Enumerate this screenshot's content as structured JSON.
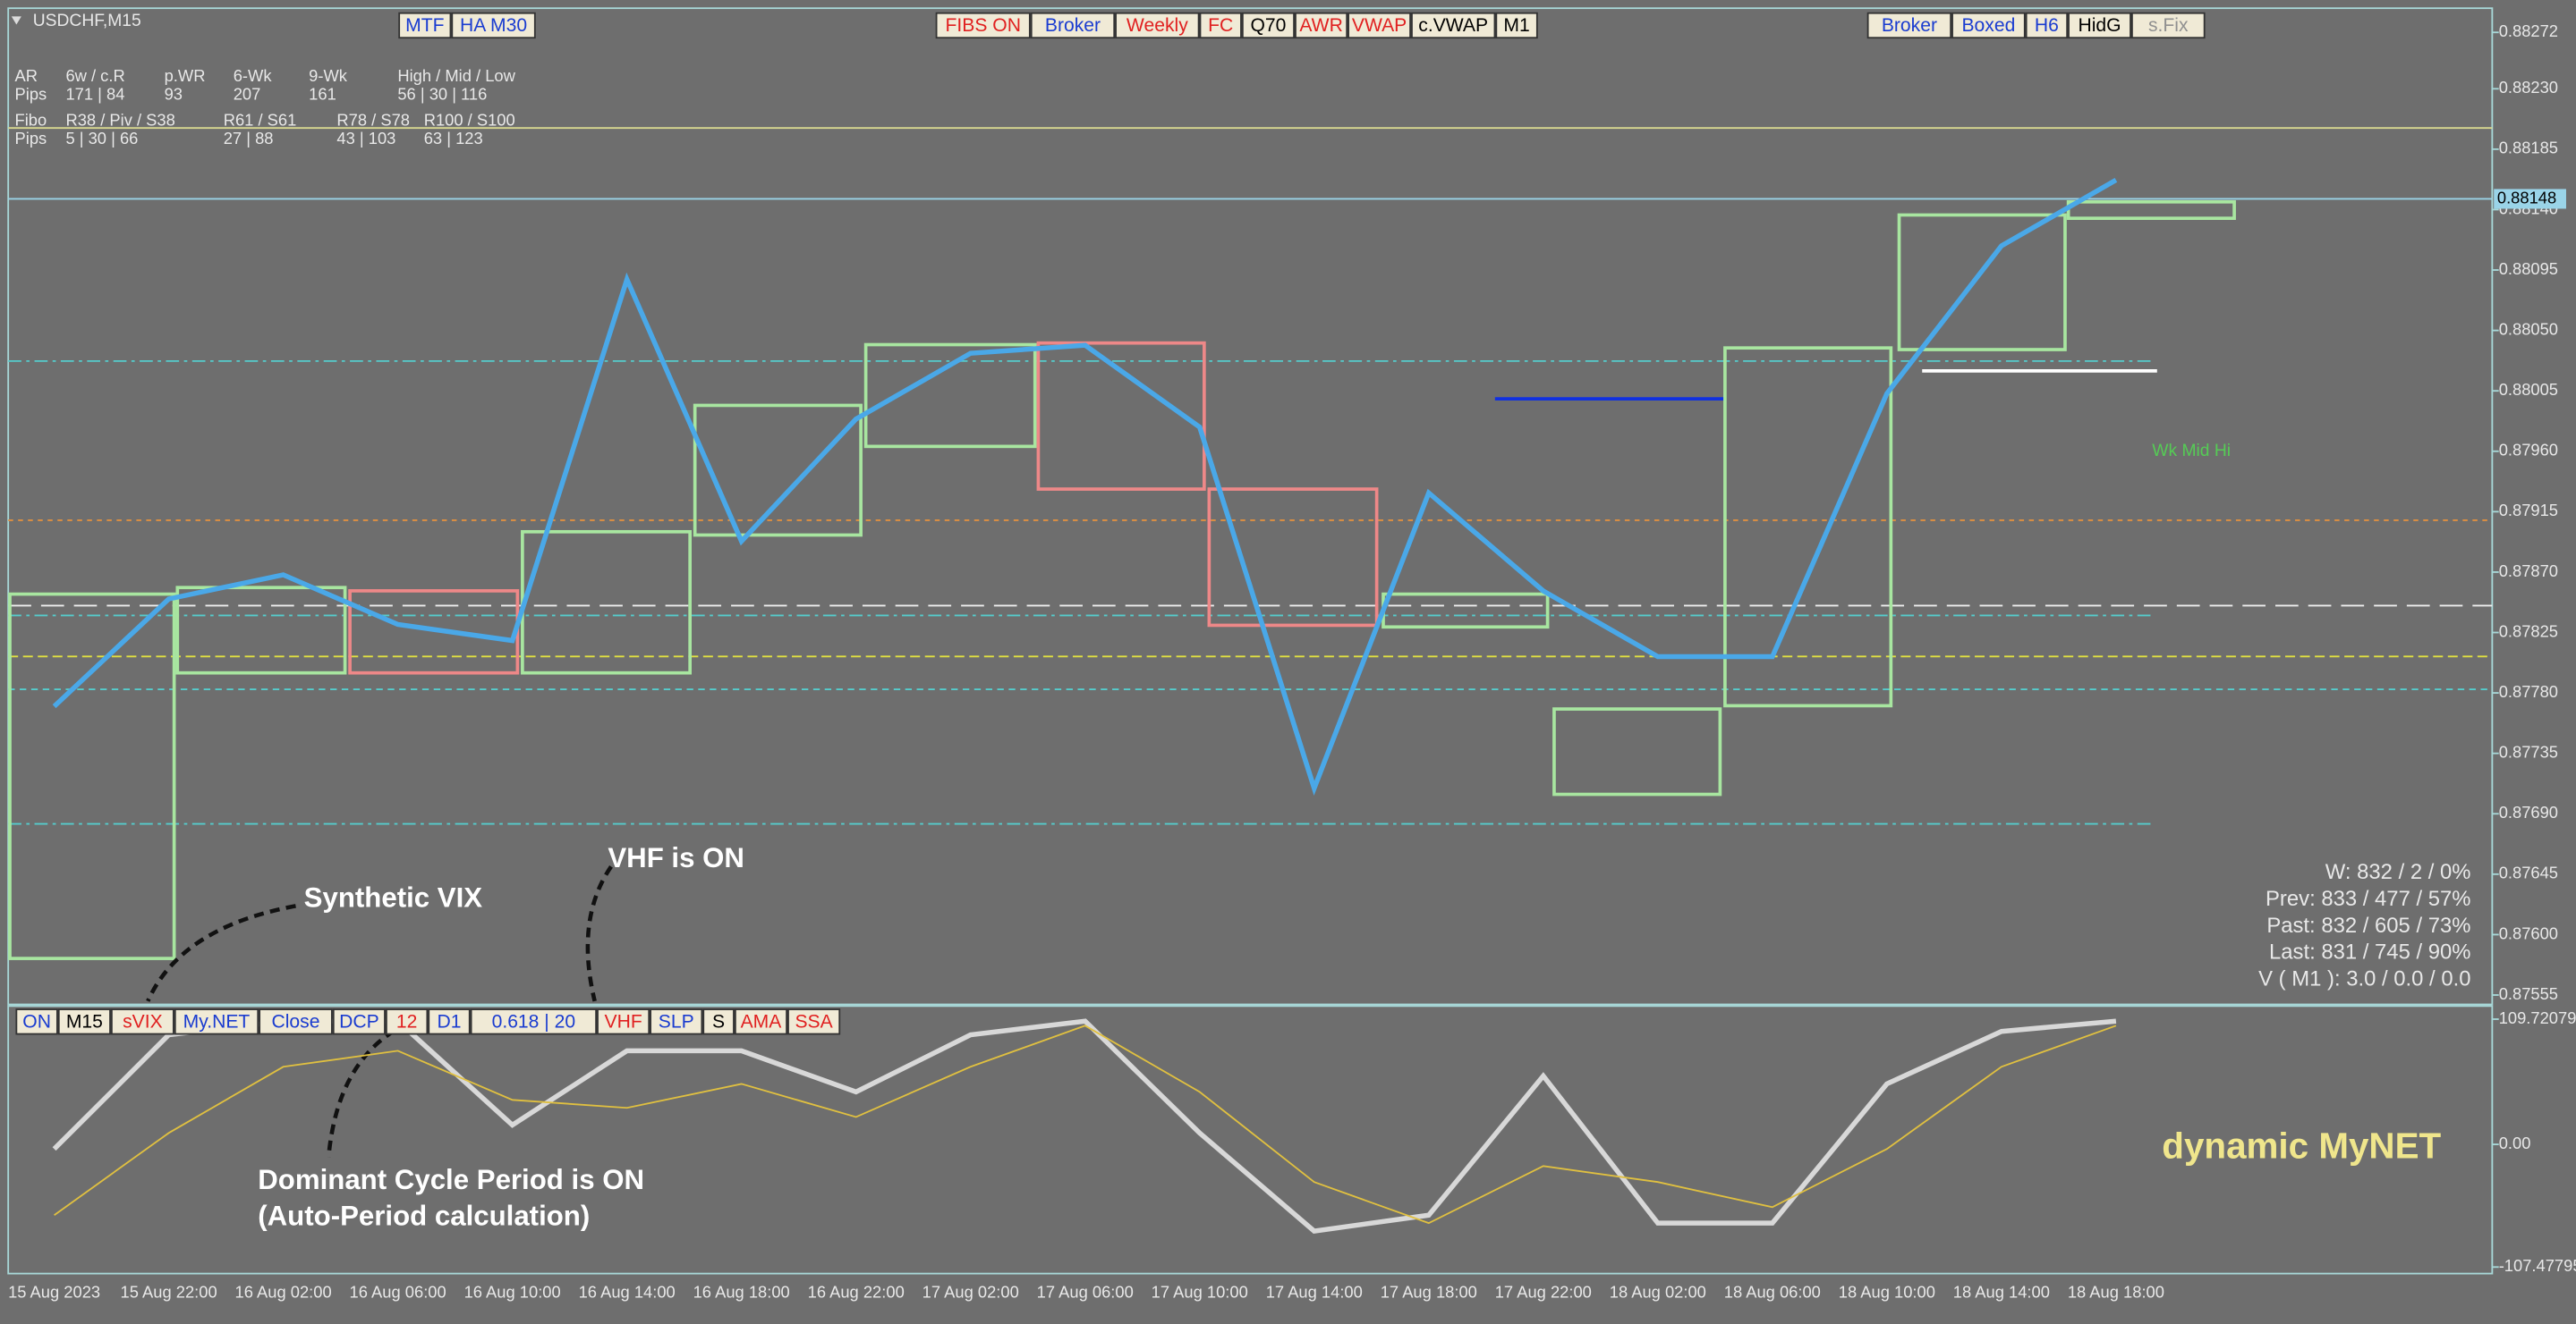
{
  "chart_data": [
    {
      "type": "line",
      "title": "USDCHF,M15",
      "categories": [
        "15 Aug 2023",
        "15 Aug 22:00",
        "16 Aug 02:00",
        "16 Aug 06:00",
        "16 Aug 10:00",
        "16 Aug 14:00",
        "16 Aug 18:00",
        "16 Aug 22:00",
        "17 Aug 02:00",
        "17 Aug 06:00",
        "17 Aug 10:00",
        "17 Aug 14:00",
        "17 Aug 18:00",
        "17 Aug 22:00",
        "18 Aug 02:00",
        "18 Aug 06:00",
        "18 Aug 10:00",
        "18 Aug 14:00",
        "18 Aug 18:00"
      ],
      "values": [
        0.8777,
        0.8785,
        0.87868,
        0.87831,
        0.87819,
        0.88088,
        0.87893,
        0.87984,
        0.88033,
        0.88039,
        0.87978,
        0.87709,
        0.87929,
        0.87856,
        0.87807,
        0.87807,
        0.88003,
        0.88113,
        0.88162
      ],
      "color": "#4aa8e8",
      "ylim": [
        0.87548,
        0.8829
      ],
      "yticks": [
        {
          "value": 0.88272,
          "label": "0.88272"
        },
        {
          "value": 0.8823,
          "label": "0.88230"
        },
        {
          "value": 0.88185,
          "label": "0.88185"
        },
        {
          "value": 0.8814,
          "label": "0.88140"
        },
        {
          "value": 0.88095,
          "label": "0.88095"
        },
        {
          "value": 0.8805,
          "label": "0.88050"
        },
        {
          "value": 0.88005,
          "label": "0.88005"
        },
        {
          "value": 0.8796,
          "label": "0.87960"
        },
        {
          "value": 0.87915,
          "label": "0.87915"
        },
        {
          "value": 0.8787,
          "label": "0.87870"
        },
        {
          "value": 0.87825,
          "label": "0.87825"
        },
        {
          "value": 0.8778,
          "label": "0.87780"
        },
        {
          "value": 0.87735,
          "label": "0.87735"
        },
        {
          "value": 0.8769,
          "label": "0.87690"
        },
        {
          "value": 0.87645,
          "label": "0.87645"
        },
        {
          "value": 0.876,
          "label": "0.87600"
        },
        {
          "value": 0.87555,
          "label": "0.87555"
        }
      ],
      "current_price": 0.88148
    },
    {
      "type": "line",
      "series": [
        {
          "color": "#d8d8d8",
          "values": [
            -4,
            96,
            108,
            108,
            17,
            82,
            82,
            46,
            96,
            108,
            10,
            -76,
            -62,
            60,
            -69,
            -69,
            53,
            99,
            108
          ]
        },
        {
          "color": "#e0c040",
          "values": [
            -62,
            10,
            68,
            82,
            39,
            32,
            53,
            24,
            68,
            104,
            46,
            -33,
            -69,
            -19,
            -33,
            -55,
            -4,
            68,
            104
          ]
        }
      ],
      "ylim": [
        -113.2,
        121.2
      ],
      "yticks": [
        {
          "value": 109.72079,
          "label": "109.72079"
        },
        {
          "value": 0,
          "label": "0.00"
        },
        {
          "value": -107.47795,
          "label": "-107.47795"
        }
      ]
    }
  ],
  "ui": {
    "top_buttons": [
      {
        "text": "MTF",
        "color": "#1a3cd0"
      },
      {
        "text": "HA M30",
        "color": "#1a3cd0"
      }
    ],
    "center_buttons": [
      {
        "text": "FIBS ON",
        "color": "#e02020"
      },
      {
        "text": "Broker",
        "color": "#1a3cd0"
      },
      {
        "text": "Weekly",
        "color": "#e02020"
      },
      {
        "text": "FC",
        "color": "#e02020"
      },
      {
        "text": "Q70",
        "color": "#000000"
      },
      {
        "text": "AWR",
        "color": "#e02020"
      },
      {
        "text": "VWAP",
        "color": "#e02020"
      },
      {
        "text": "c.VWAP",
        "color": "#000000"
      },
      {
        "text": "M1",
        "color": "#000000"
      }
    ],
    "right_buttons": [
      {
        "text": "Broker",
        "color": "#1a3cd0"
      },
      {
        "text": "Boxed",
        "color": "#1a3cd0"
      },
      {
        "text": "H6",
        "color": "#1a3cd0"
      },
      {
        "text": "HidG",
        "color": "#000000"
      },
      {
        "text": "s.Fix",
        "color": "#909090"
      }
    ],
    "bottom_buttons": [
      {
        "text": "ON",
        "color": "#1a3cd0"
      },
      {
        "text": "M15",
        "color": "#000000"
      },
      {
        "text": "sVIX",
        "color": "#e02020"
      },
      {
        "text": "My.NET",
        "color": "#1a3cd0"
      },
      {
        "text": "Close",
        "color": "#1a3cd0"
      },
      {
        "text": "DCP",
        "color": "#1a3cd0"
      },
      {
        "text": "12",
        "color": "#e02020"
      },
      {
        "text": "D1",
        "color": "#1a3cd0"
      },
      {
        "text": "0.618 | 20",
        "color": "#1a3cd0"
      },
      {
        "text": "VHF",
        "color": "#e02020"
      },
      {
        "text": "SLP",
        "color": "#1a3cd0"
      },
      {
        "text": "S",
        "color": "#000000"
      },
      {
        "text": "AMA",
        "color": "#e02020"
      },
      {
        "text": "SSA",
        "color": "#e02020"
      }
    ],
    "stats": [
      [
        "AR",
        "6w / c.R",
        "p.WR",
        "6-Wk",
        "9-Wk",
        "High / Mid / Low"
      ],
      [
        "Pips",
        "171 | 84",
        "93",
        "207",
        "161",
        "56 | 30 | 116"
      ],
      [
        "Fibo",
        "R38 / Piv / S38",
        "R61 / S61",
        "R78 / S78",
        "R100 / S100"
      ],
      [
        "Pips",
        "5 | 30 | 66",
        "27 | 88",
        "43 | 103",
        "63 | 123"
      ]
    ],
    "summary": [
      "W: 832 / 2 / 0%",
      "Prev: 833 / 477 / 57%",
      "Past: 832 / 605 / 73%",
      "Last: 831 / 745 / 90%",
      "V ( M1 ): 3.0 / 0.0 / 0.0"
    ],
    "level_label": "Wk Mid Hi",
    "annotations": [
      "Synthetic VIX",
      "VHF is ON",
      "Dominant Cycle Period is ON",
      "(Auto-Period calculation)"
    ],
    "indicator_name": "dynamic MyNET"
  }
}
